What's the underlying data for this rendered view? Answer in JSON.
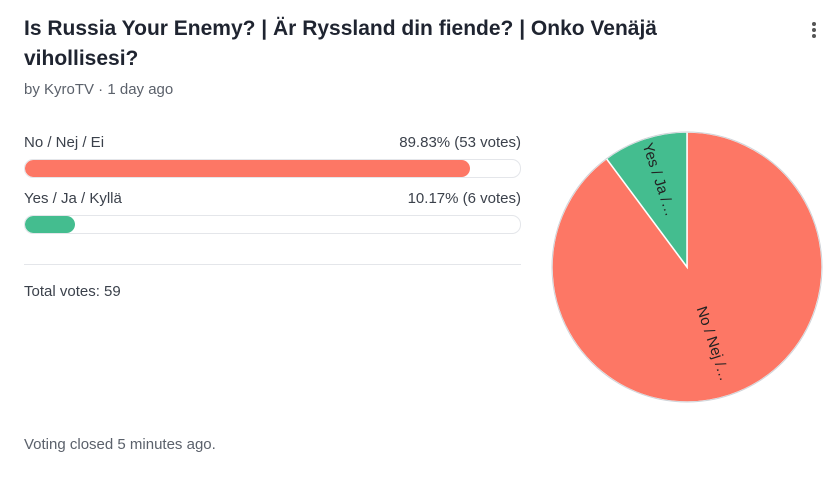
{
  "poll": {
    "title": "Is Russia Your Enemy? | Är Ryssland din fiende? | Onko Venäjä vihollisesi?",
    "byline": "by KyroTV · 1 day ago",
    "options": [
      {
        "label": "No / Nej / Ei",
        "value": 89.83,
        "value_label": "89.83% (53 votes)",
        "pie_label": "No / Nej /…",
        "color": "#fd7765"
      },
      {
        "label": "Yes / Ja / Kyllä",
        "value": 10.17,
        "value_label": "10.17% (6 votes)",
        "pie_label": "Yes / Ja /…",
        "color": "#44bd8f"
      }
    ],
    "total": "Total votes: 59",
    "footer": "Voting closed 5 minutes ago."
  }
}
